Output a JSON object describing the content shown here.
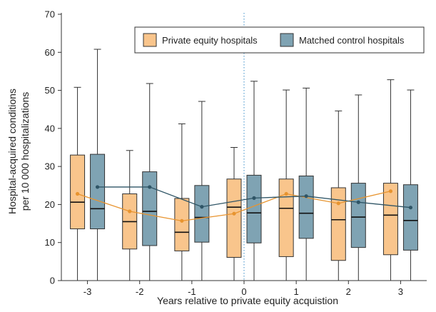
{
  "chart_data": {
    "type": "box",
    "title": "",
    "xlabel": "Years relative to private equity acquistion",
    "ylabel_line1": "Hospital-acquired conditions",
    "ylabel_line2": "per 10 000 hospitalizations",
    "ylim": [
      0,
      70
    ],
    "yticks": [
      0,
      10,
      20,
      30,
      40,
      50,
      60,
      70
    ],
    "categories": [
      "-3",
      "-2",
      "-1",
      "0",
      "1",
      "2",
      "3"
    ],
    "reference_line_x": "0",
    "grid": false,
    "legend_position": "top-right",
    "series": [
      {
        "name": "Private equity hospitals",
        "color": "#F9C58C",
        "line_color": "#E8942F",
        "whisker_low": [
          0,
          0,
          0,
          0,
          0,
          0,
          0
        ],
        "q1": [
          13.6,
          8.3,
          7.8,
          6.1,
          6.3,
          5.3,
          6.8
        ],
        "median": [
          20.6,
          15.5,
          12.7,
          19.3,
          19.0,
          16.0,
          17.2
        ],
        "q3": [
          33.0,
          22.8,
          21.6,
          26.7,
          26.7,
          24.4,
          25.6
        ],
        "whisker_high": [
          50.8,
          34.2,
          41.2,
          35.0,
          50.1,
          44.6,
          52.8
        ],
        "mean": [
          22.8,
          18.2,
          15.7,
          17.6,
          22.8,
          20.3,
          23.5
        ]
      },
      {
        "name": "Matched control hospitals",
        "color": "#7FA3B3",
        "line_color": "#2F5566",
        "whisker_low": [
          0,
          0,
          0,
          0,
          0,
          0,
          0
        ],
        "q1": [
          13.6,
          9.2,
          10.1,
          9.9,
          11.1,
          8.7,
          8.0
        ],
        "median": [
          18.9,
          18.2,
          16.6,
          17.8,
          17.7,
          16.7,
          15.8
        ],
        "q3": [
          33.2,
          28.6,
          25.0,
          27.7,
          27.5,
          25.6,
          25.2
        ],
        "whisker_high": [
          60.8,
          51.8,
          47.1,
          52.4,
          50.6,
          48.8,
          50.1
        ],
        "mean": [
          24.6,
          24.6,
          19.4,
          21.7,
          22.2,
          20.6,
          19.2
        ]
      }
    ]
  }
}
